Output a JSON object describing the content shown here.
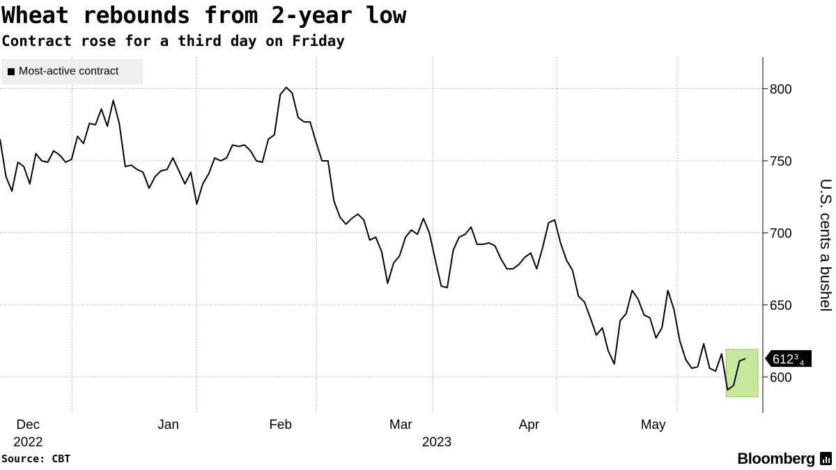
{
  "header": {
    "title": "Wheat rebounds from 2-year low",
    "subtitle": "Contract rose for a third day on Friday"
  },
  "footer": {
    "source": "Source: CBT",
    "brand": "Bloomberg"
  },
  "colors": {
    "line": "#000000",
    "highlight_fill": "#c6e89a",
    "highlight_stroke": "#8fcb45",
    "grid": "#bbbbbb"
  },
  "chart_data": {
    "type": "line",
    "title": "Wheat rebounds from 2-year low",
    "subtitle": "Contract rose for a third day on Friday",
    "ylabel": "U.S. cents a bushel",
    "ylim": [
      575,
      822
    ],
    "yticks": [
      600,
      650,
      700,
      750,
      800
    ],
    "grid": true,
    "legend_position": "top-left",
    "series": [
      {
        "name": "Most-active contract",
        "values": [
          765,
          739,
          729,
          749,
          746,
          734,
          755,
          750,
          749,
          757,
          754,
          749,
          751,
          767,
          762,
          776,
          775,
          786,
          774,
          792,
          776,
          746,
          747,
          744,
          742,
          731,
          739,
          743,
          744,
          752,
          743,
          734,
          742,
          720,
          734,
          741,
          752,
          750,
          752,
          761,
          760,
          761,
          757,
          750,
          749,
          765,
          768,
          796,
          801,
          797,
          780,
          777,
          777,
          763,
          750,
          750,
          722,
          711,
          706,
          710,
          713,
          709,
          695,
          697,
          687,
          665,
          679,
          684,
          697,
          702,
          699,
          710,
          700,
          681,
          663,
          662,
          688,
          697,
          699,
          704,
          692,
          692,
          693,
          691,
          682,
          675,
          675,
          678,
          683,
          686,
          675,
          690,
          707,
          709,
          693,
          681,
          674,
          656,
          652,
          641,
          629,
          634,
          618,
          609,
          639,
          644,
          660,
          654,
          643,
          641,
          627,
          634,
          660,
          647,
          625,
          612,
          606,
          607,
          623,
          606,
          604,
          616,
          591,
          594,
          611,
          612.75
        ]
      }
    ],
    "last_value_label": "612",
    "last_value_fraction": "3",
    "last_value_fraction_den": "4",
    "x_month_labels": [
      "Dec",
      "Jan",
      "Feb",
      "Mar",
      "Apr",
      "May"
    ],
    "x_year_labels": [
      "2022",
      "2023"
    ],
    "x_range": [
      "2022-11-28",
      "2023-06-02"
    ],
    "highlight_range": [
      "2023-05-31",
      "2023-06-02"
    ]
  }
}
